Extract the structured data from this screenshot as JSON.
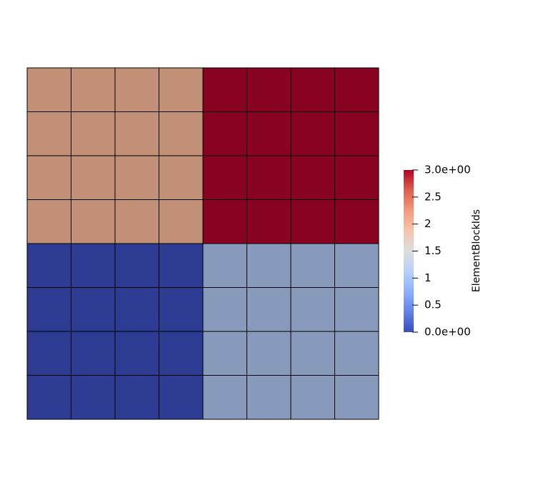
{
  "chart_data": {
    "type": "heatmap",
    "grid": {
      "rows": 8,
      "cols": 8
    },
    "blocks": [
      {
        "block": "top-left",
        "value": 2,
        "color": "#c28f77"
      },
      {
        "block": "top-right",
        "value": 3,
        "color": "#880321"
      },
      {
        "block": "bottom-left",
        "value": 0,
        "color": "#2e3b92"
      },
      {
        "block": "bottom-right",
        "value": 1,
        "color": "#879abb"
      }
    ],
    "values": [
      [
        2,
        2,
        2,
        2,
        3,
        3,
        3,
        3
      ],
      [
        2,
        2,
        2,
        2,
        3,
        3,
        3,
        3
      ],
      [
        2,
        2,
        2,
        2,
        3,
        3,
        3,
        3
      ],
      [
        2,
        2,
        2,
        2,
        3,
        3,
        3,
        3
      ],
      [
        0,
        0,
        0,
        0,
        1,
        1,
        1,
        1
      ],
      [
        0,
        0,
        0,
        0,
        1,
        1,
        1,
        1
      ],
      [
        0,
        0,
        0,
        0,
        1,
        1,
        1,
        1
      ],
      [
        0,
        0,
        0,
        0,
        1,
        1,
        1,
        1
      ]
    ],
    "cell_colors": {
      "0": "#2e3b92",
      "1": "#879abb",
      "2": "#c28f77",
      "3": "#880321"
    },
    "colorbar": {
      "title": "ElementBlockIds",
      "range": [
        0,
        3
      ],
      "ticks": [
        {
          "value": 3.0,
          "label": "3.0e+00"
        },
        {
          "value": 2.5,
          "label": "2.5"
        },
        {
          "value": 2.0,
          "label": "2"
        },
        {
          "value": 1.5,
          "label": "1.5"
        },
        {
          "value": 1.0,
          "label": "1"
        },
        {
          "value": 0.5,
          "label": "0.5"
        },
        {
          "value": 0.0,
          "label": "0.0e+00"
        }
      ],
      "colormap": "Cool to Warm",
      "gradient_stops": [
        "#3b4cc0",
        "#6282ea",
        "#8db0fe",
        "#b8d0f9",
        "#dddddd",
        "#f5c4ad",
        "#f49a7b",
        "#de604d",
        "#b40426"
      ]
    },
    "grid_line_color": "#000000"
  }
}
